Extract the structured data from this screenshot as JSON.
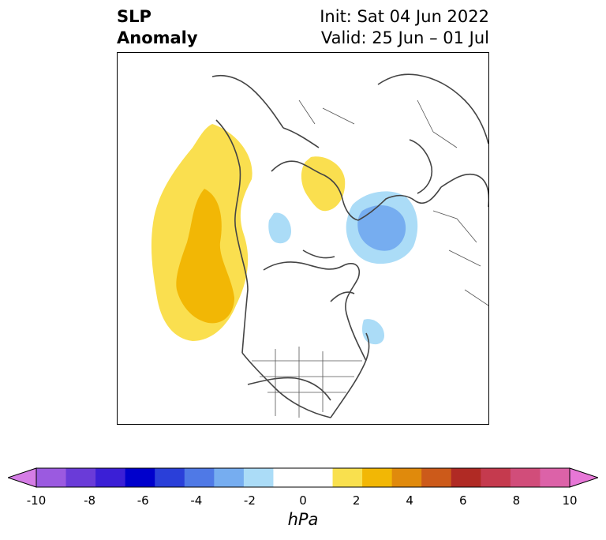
{
  "title": {
    "left_line1": "SLP",
    "left_line2": "Anomaly",
    "right_line1": "Init: Sat 04 Jun 2022",
    "right_line2": "Valid: 25 Jun – 01 Jul"
  },
  "colorbar": {
    "unit": "hPa",
    "range": [
      -10,
      10
    ],
    "ticks": [
      "-10",
      "-8",
      "-6",
      "-4",
      "-2",
      "0",
      "2",
      "4",
      "6",
      "8",
      "10"
    ],
    "colors": [
      "#d57de6",
      "#9b5ae0",
      "#6a3bd8",
      "#3b1fd6",
      "#0000cc",
      "#2a3fd9",
      "#4f79e6",
      "#76adf0",
      "#abdcf7",
      "#ffffff",
      "#ffffff",
      "#f9e04e",
      "#f2b705",
      "#e08a0c",
      "#cc5a1a",
      "#b02a24",
      "#c53a4e",
      "#d14d7a",
      "#dc62a8",
      "#e777d7"
    ]
  },
  "map": {
    "projection": "north polar stereographic",
    "anomalies": [
      {
        "region": "NE Pacific / Gulf of Alaska",
        "level": "positive",
        "max_hpa": 4
      },
      {
        "region": "Barents / Kara Sea",
        "level": "positive",
        "max_hpa": 2
      },
      {
        "region": "Scandinavia / Baltic",
        "level": "negative",
        "max_hpa": -4
      },
      {
        "region": "Canadian Arctic",
        "level": "negative",
        "max_hpa": -2
      },
      {
        "region": "North Atlantic (Newfoundland)",
        "level": "negative",
        "max_hpa": -2
      }
    ]
  }
}
